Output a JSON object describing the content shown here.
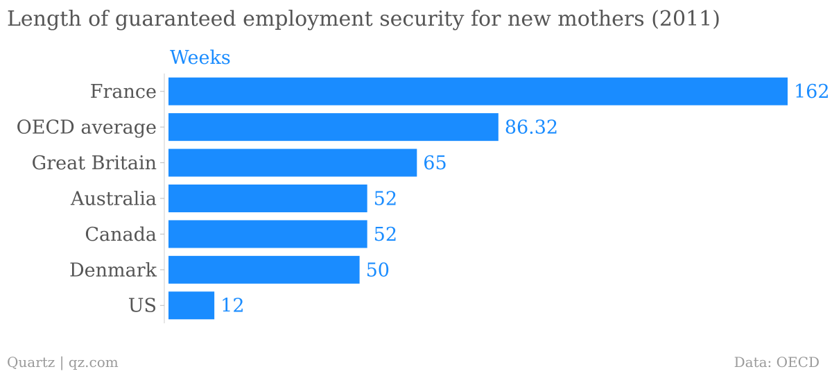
{
  "chart_data": {
    "type": "bar",
    "orientation": "horizontal",
    "title": "Length of guaranteed employment security for new mothers (2011)",
    "unit_label": "Weeks",
    "categories": [
      "France",
      "OECD average",
      "Great Britain",
      "Australia",
      "Canada",
      "Denmark",
      "US"
    ],
    "values": [
      162,
      86.32,
      65,
      52,
      52,
      50,
      12
    ],
    "value_labels": [
      "162",
      "86.32",
      "65",
      "52",
      "52",
      "50",
      "12"
    ],
    "xlim": [
      0,
      162
    ],
    "grid": false,
    "legend": "none",
    "bar_color": "#1a8cff",
    "label_color": "#1a8cff",
    "category_color": "#555555"
  },
  "footer": {
    "source_left": "Quartz | qz.com",
    "source_right": "Data: OECD"
  }
}
